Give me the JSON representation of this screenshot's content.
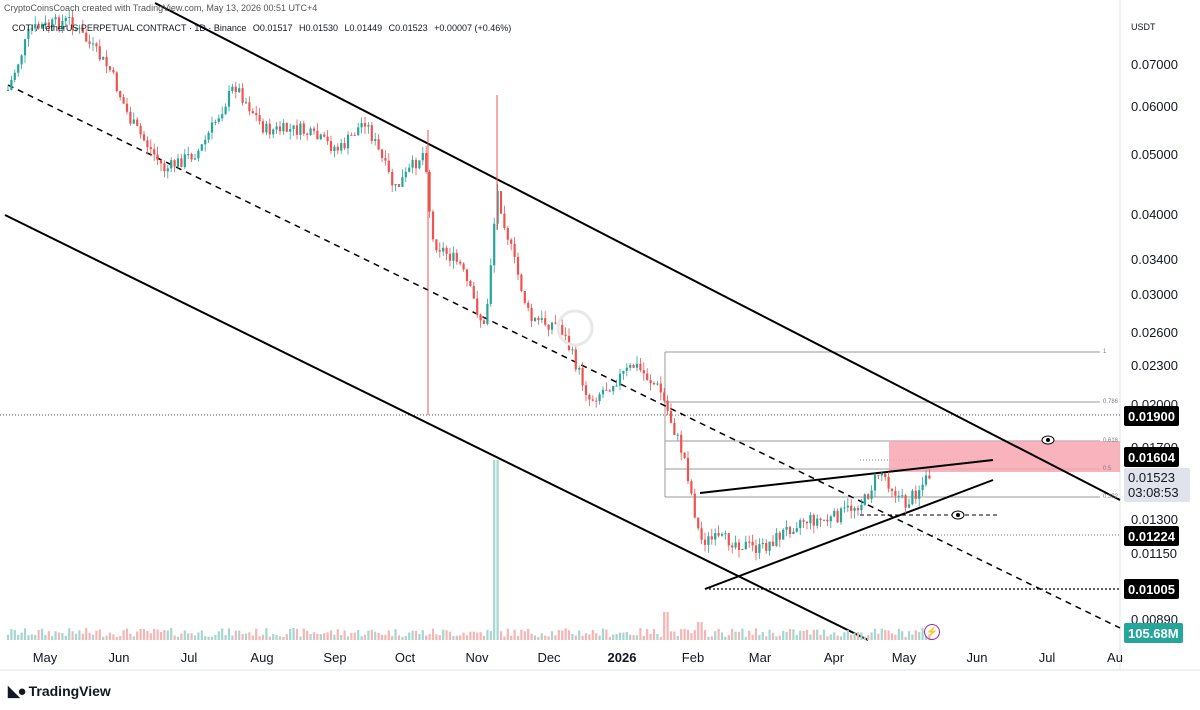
{
  "header": {
    "credit": "CryptoCoinsCoach created with TradingView.com, May 13, 2026 00:51 UTC+4",
    "symbol": "COTI / TetherUS PERPETUAL CONTRACT · 1D · Binance",
    "ohlc": {
      "open": "O0.01517",
      "high": "H0.01530",
      "low": "L0.01449",
      "close": "C0.01523",
      "change": "+0.00007 (+0.46%)"
    }
  },
  "price_axis": {
    "currency": "USDT",
    "ticks": [
      "0.07000",
      "0.06000",
      "0.05000",
      "0.04000",
      "0.03400",
      "0.03000",
      "0.02600",
      "0.02300",
      "0.02000",
      "0.01700",
      "0.01300",
      "0.01150",
      "0.00890"
    ]
  },
  "price_labels": {
    "level_1": "0.01900",
    "level_2": "0.01604",
    "current_price": "0.01523",
    "countdown": "03:08:53",
    "level_3": "0.01224",
    "level_4": "0.01005",
    "volume": "105.68M"
  },
  "fib_levels": [
    "1",
    "0.786",
    "0.618",
    "0.5",
    "0.382"
  ],
  "time_axis": [
    {
      "label": "May",
      "bold": false
    },
    {
      "label": "Jun",
      "bold": false
    },
    {
      "label": "Jul",
      "bold": false
    },
    {
      "label": "Aug",
      "bold": false
    },
    {
      "label": "Sep",
      "bold": false
    },
    {
      "label": "Oct",
      "bold": false
    },
    {
      "label": "Nov",
      "bold": false
    },
    {
      "label": "Dec",
      "bold": false
    },
    {
      "label": "2026",
      "bold": true
    },
    {
      "label": "Feb",
      "bold": false
    },
    {
      "label": "Mar",
      "bold": false
    },
    {
      "label": "Apr",
      "bold": false
    },
    {
      "label": "May",
      "bold": false
    },
    {
      "label": "Jun",
      "bold": false
    },
    {
      "label": "Jul",
      "bold": false
    },
    {
      "label": "Au",
      "bold": false
    }
  ],
  "footer": {
    "brand": "TradingView"
  },
  "colors": {
    "up": "#26a69a",
    "down": "#ef5350",
    "zone": "#f7a6b0",
    "line": "#000000"
  }
}
